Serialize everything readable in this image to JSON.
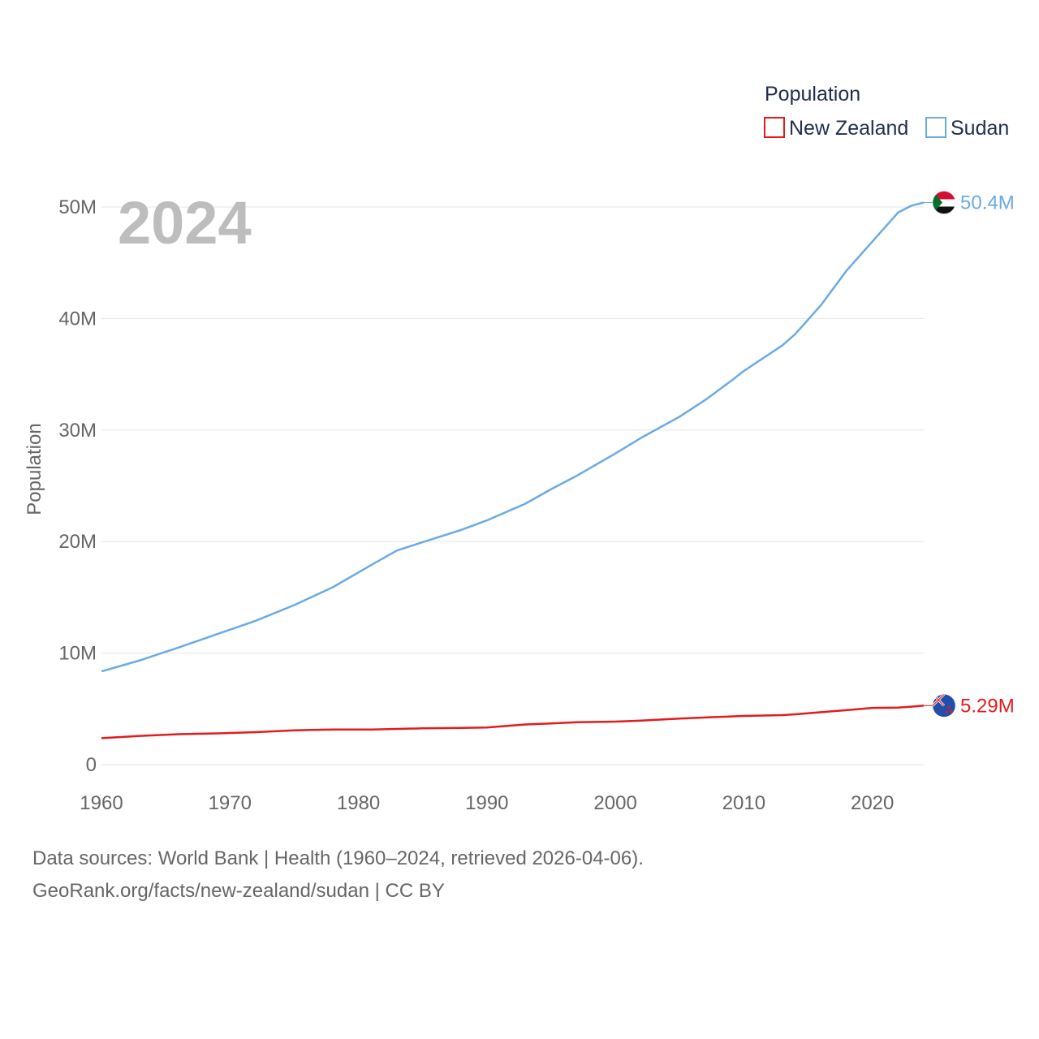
{
  "chart_data": {
    "type": "line",
    "title": "",
    "year_label": "2024",
    "xlabel": "",
    "ylabel": "Population",
    "xlim": [
      1960,
      2024
    ],
    "ylim": [
      0,
      50000000
    ],
    "x_ticks": [
      1960,
      1970,
      1980,
      1990,
      2000,
      2010,
      2020
    ],
    "x_tick_labels": [
      "1960",
      "1970",
      "1980",
      "1990",
      "2000",
      "2010",
      "2020"
    ],
    "y_ticks": [
      0,
      10000000,
      20000000,
      30000000,
      40000000,
      50000000
    ],
    "y_tick_labels": [
      "0",
      "10M",
      "20M",
      "30M",
      "40M",
      "50M"
    ],
    "grid": true,
    "legend": {
      "title": "Population",
      "position": "top-right",
      "entries": [
        "New Zealand",
        "Sudan"
      ]
    },
    "x": [
      1960,
      1963,
      1966,
      1969,
      1972,
      1975,
      1978,
      1981,
      1983,
      1985,
      1988,
      1990,
      1993,
      1995,
      1997,
      2000,
      2002,
      2005,
      2007,
      2009,
      2010,
      2013,
      2014,
      2016,
      2018,
      2020,
      2022,
      2023,
      2024
    ],
    "series": [
      {
        "name": "New Zealand",
        "color": "#e41a1c",
        "end_label": "5.29M",
        "flag": "new-zealand-flag",
        "values": [
          2370000,
          2580000,
          2730000,
          2800000,
          2910000,
          3080000,
          3150000,
          3150000,
          3200000,
          3250000,
          3300000,
          3330000,
          3600000,
          3700000,
          3800000,
          3860000,
          3950000,
          4130000,
          4230000,
          4320000,
          4370000,
          4440000,
          4510000,
          4700000,
          4880000,
          5090000,
          5120000,
          5200000,
          5290000
        ]
      },
      {
        "name": "Sudan",
        "color": "#6aaae4",
        "end_label": "50.4M",
        "flag": "sudan-flag",
        "values": [
          8360000,
          9350000,
          10500000,
          11700000,
          12900000,
          14300000,
          15900000,
          17900000,
          19200000,
          19950000,
          21050000,
          21900000,
          23400000,
          24700000,
          25900000,
          27900000,
          29300000,
          31200000,
          32700000,
          34400000,
          35300000,
          37600000,
          38600000,
          41200000,
          44300000,
          46900000,
          49500000,
          50100000,
          50400000
        ]
      }
    ]
  },
  "footer": {
    "line1": "Data sources: World Bank | Health (1960–2024, retrieved 2026-04-06).",
    "line2": "GeoRank.org/facts/new-zealand/sudan | CC BY"
  }
}
